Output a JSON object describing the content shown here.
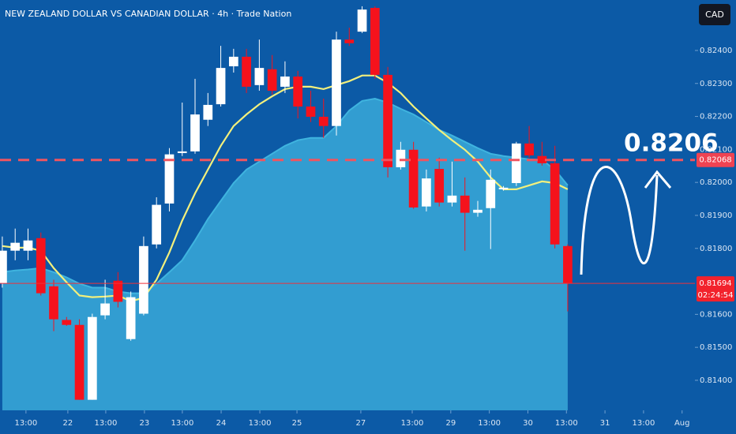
{
  "chart_data": {
    "type": "candlestick",
    "title": "NEW ZEALAND DOLLAR VS CANADIAN DOLLAR · 4h · Trade Nation",
    "currency": "CAD",
    "up_color": "#ffffff",
    "down_color": "#f5121c",
    "open": [
      0.81693,
      0.81793,
      0.81793,
      0.81831,
      0.81685,
      0.81583,
      0.81568,
      0.81341,
      0.81597,
      0.81702,
      0.81525,
      0.81602,
      0.81812,
      0.81936,
      0.82089,
      0.82094,
      0.8219,
      0.82237,
      0.82352,
      0.82381,
      0.82295,
      0.82343,
      0.8229,
      0.82321,
      0.8223,
      0.82199,
      0.82171,
      0.82433,
      0.82457,
      0.82529,
      0.82326,
      0.82046,
      0.82099,
      0.81927,
      0.82041,
      0.81939,
      0.8196,
      0.81908,
      0.81922,
      0.81979,
      0.81998,
      0.82118,
      0.8208,
      0.82058,
      0.81807
    ],
    "high": [
      0.81836,
      0.8186,
      0.8186,
      0.81848,
      0.81705,
      0.81592,
      0.81585,
      0.81602,
      0.81705,
      0.81728,
      0.81669,
      0.81836,
      0.81955,
      0.82104,
      0.82242,
      0.82314,
      0.82271,
      0.82414,
      0.82405,
      0.82405,
      0.82433,
      0.82386,
      0.82367,
      0.82338,
      0.82278,
      0.82254,
      0.82457,
      0.82469,
      0.82534,
      0.82534,
      0.8235,
      0.82123,
      0.82123,
      0.82039,
      0.82075,
      0.82063,
      0.82015,
      0.81944,
      0.82039,
      0.81989,
      0.82123,
      0.82171,
      0.82123,
      0.82111,
      0.81812
    ],
    "low": [
      0.81681,
      0.81764,
      0.81764,
      0.81657,
      0.81549,
      0.81565,
      0.81341,
      0.81341,
      0.81585,
      0.81621,
      0.8152,
      0.81597,
      0.818,
      0.81912,
      0.8208,
      0.82087,
      0.82171,
      0.8223,
      0.82333,
      0.82271,
      0.82278,
      0.82266,
      0.82271,
      0.82194,
      0.82183,
      0.82135,
      0.82142,
      0.82414,
      0.82453,
      0.82314,
      0.82015,
      0.82039,
      0.8192,
      0.81912,
      0.81927,
      0.81927,
      0.81793,
      0.81896,
      0.81798,
      0.81975,
      0.81989,
      0.82075,
      0.82051,
      0.818,
      0.81609
    ],
    "close": [
      0.81793,
      0.81817,
      0.81824,
      0.81664,
      0.81585,
      0.81568,
      0.81341,
      0.81592,
      0.81633,
      0.81638,
      0.81652,
      0.81807,
      0.81932,
      0.82085,
      0.82094,
      0.82206,
      0.82235,
      0.82347,
      0.82381,
      0.8229,
      0.82347,
      0.82278,
      0.82321,
      0.8223,
      0.82199,
      0.82171,
      0.82433,
      0.82422,
      0.82524,
      0.82326,
      0.82046,
      0.82099,
      0.81924,
      0.82012,
      0.81939,
      0.8196,
      0.81908,
      0.81917,
      0.82008,
      0.81984,
      0.82118,
      0.82082,
      0.82058,
      0.81812,
      0.81694
    ],
    "overlays": [
      {
        "kind": "area",
        "color": "#3fb4df",
        "values": [
          0.81728,
          0.81733,
          0.81736,
          0.8174,
          0.81728,
          0.81712,
          0.81693,
          0.81681,
          0.81681,
          0.81669,
          0.81664,
          0.81664,
          0.81693,
          0.81728,
          0.81764,
          0.81824,
          0.81889,
          0.81944,
          0.81998,
          0.82039,
          0.82063,
          0.82087,
          0.82111,
          0.82128,
          0.82135,
          0.82135,
          0.82171,
          0.82218,
          0.82247,
          0.82254,
          0.82242,
          0.82223,
          0.82206,
          0.82183,
          0.82159,
          0.82142,
          0.82123,
          0.82104,
          0.82087,
          0.8208,
          0.82075,
          0.8207,
          0.82068,
          0.82039,
          0.81991
        ]
      },
      {
        "kind": "line",
        "color": "#f3f07c",
        "values": [
          0.81807,
          0.81802,
          0.81802,
          0.81793,
          0.8174,
          0.81697,
          0.81657,
          0.81652,
          0.81654,
          0.81657,
          0.8164,
          0.8165,
          0.81705,
          0.81788,
          0.81884,
          0.81967,
          0.82039,
          0.82111,
          0.82171,
          0.82206,
          0.82237,
          0.82261,
          0.82283,
          0.8229,
          0.8229,
          0.82283,
          0.82295,
          0.82307,
          0.82324,
          0.82324,
          0.82302,
          0.82271,
          0.8223,
          0.82194,
          0.82159,
          0.82128,
          0.82099,
          0.82063,
          0.82015,
          0.81979,
          0.81979,
          0.81991,
          0.82003,
          0.81998,
          0.81979
        ]
      }
    ],
    "hlines": [
      {
        "value": 0.82068,
        "style": "dashed",
        "color": "#ef5560"
      },
      {
        "value": 0.81694,
        "style": "solid",
        "color": "#f0303a",
        "countdown": "02:24:54"
      }
    ],
    "annotation": "0.8206",
    "xlim": [
      -0.18,
      53.9
    ],
    "ylim": [
      0.81309,
      0.82553
    ],
    "yticks": [
      {
        "value": 0.814,
        "label": "0.81400"
      },
      {
        "value": 0.815,
        "label": "0.81500"
      },
      {
        "value": 0.816,
        "label": "0.81600"
      },
      {
        "value": 0.818,
        "label": "0.81800"
      },
      {
        "value": 0.819,
        "label": "0.81900"
      },
      {
        "value": 0.82,
        "label": "0.82000"
      },
      {
        "value": 0.821,
        "label": "0.82100"
      },
      {
        "value": 0.822,
        "label": "0.82200"
      },
      {
        "value": 0.823,
        "label": "0.82300"
      },
      {
        "value": 0.824,
        "label": "0.82400"
      }
    ],
    "xticks": [
      {
        "value": 1.84,
        "label": "13:00"
      },
      {
        "value": 5.1,
        "label": "22"
      },
      {
        "value": 8.05,
        "label": "13:00"
      },
      {
        "value": 11.06,
        "label": "23"
      },
      {
        "value": 14.01,
        "label": "13:00"
      },
      {
        "value": 17.03,
        "label": "24"
      },
      {
        "value": 20.04,
        "label": "13:00"
      },
      {
        "value": 22.93,
        "label": "25"
      },
      {
        "value": 27.9,
        "label": "27"
      },
      {
        "value": 31.9,
        "label": "13:00"
      },
      {
        "value": 34.9,
        "label": "29"
      },
      {
        "value": 37.9,
        "label": "13:00"
      },
      {
        "value": 40.9,
        "label": "30"
      },
      {
        "value": 43.9,
        "label": "13:00"
      },
      {
        "value": 46.9,
        "label": "31"
      },
      {
        "value": 49.9,
        "label": "13:00"
      },
      {
        "value": 52.9,
        "label": "Aug"
      }
    ]
  }
}
